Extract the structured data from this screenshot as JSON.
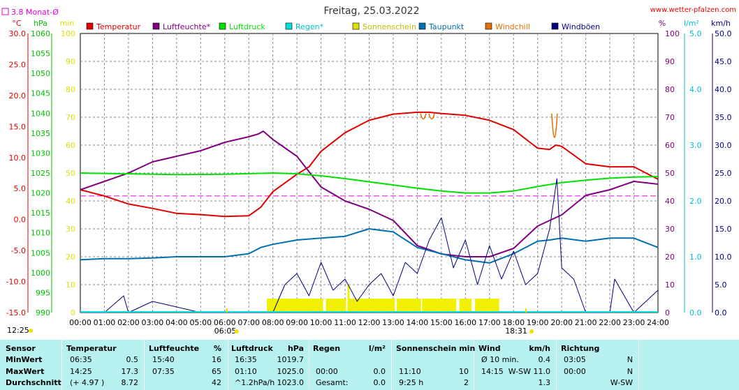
{
  "header": {
    "title": "Freitag, 25.03.2022",
    "website": "www.wetter-pfalzen.com",
    "monthly_avg_label": "3.8 Monat-Ø"
  },
  "chart_data": {
    "type": "line",
    "title": "Freitag, 25.03.2022",
    "x": [
      "00:00",
      "01:00",
      "02:00",
      "03:00",
      "04:00",
      "05:00",
      "06:00",
      "07:00",
      "08:00",
      "09:00",
      "10:00",
      "11:00",
      "12:00",
      "13:00",
      "14:00",
      "15:00",
      "16:00",
      "17:00",
      "18:00",
      "19:00",
      "20:00",
      "21:00",
      "22:00",
      "23:00",
      "24:00"
    ],
    "axes": {
      "temperature": {
        "unit": "°C",
        "range": [
          -15,
          30
        ],
        "ticks": [
          "30.0",
          "25.0",
          "20.0",
          "15.0",
          "10.0",
          "5.0",
          "0.0",
          "-5.0",
          "-10.0",
          "-15.0"
        ]
      },
      "pressure": {
        "unit": "hPa",
        "range": [
          990,
          1060
        ],
        "ticks": [
          "1060",
          "1055",
          "1050",
          "1045",
          "1040",
          "1035",
          "1030",
          "1025",
          "1020",
          "1015",
          "1010",
          "1005",
          "1000",
          "995",
          "990"
        ]
      },
      "sunshine": {
        "unit": "min",
        "range": [
          0,
          100
        ],
        "ticks": [
          "100",
          "90",
          "80",
          "70",
          "60",
          "50",
          "40",
          "30",
          "20",
          "10",
          "0"
        ]
      },
      "humidity": {
        "unit": "%",
        "range": [
          0,
          100
        ],
        "ticks": [
          "100",
          "90",
          "80",
          "70",
          "60",
          "50",
          "40",
          "30",
          "20",
          "10",
          "0"
        ]
      },
      "rain": {
        "unit": "l/m²",
        "range": [
          0,
          5
        ],
        "ticks": [
          "5.0",
          "4.0",
          "3.0",
          "2.0",
          "1.0",
          "0.0"
        ]
      },
      "wind": {
        "unit": "km/h",
        "range": [
          0,
          50
        ],
        "ticks": [
          "50.0",
          "45.0",
          "40.0",
          "35.0",
          "30.0",
          "25.0",
          "20.0",
          "15.0",
          "10.0",
          "5.0",
          "0.0"
        ]
      }
    },
    "legend": [
      "Temperatur",
      "Luftfeuchte*",
      "Luftdruck",
      "Regen*",
      "Sonnenschein",
      "Taupunkt",
      "Windchill",
      "Windböen"
    ],
    "monthly_avg_temp": 3.8,
    "sunrise": "06:05",
    "sunset": "18:31",
    "moonrise": "12:25",
    "series": [
      {
        "name": "Temperatur",
        "axis": "temperature",
        "color": "#e00000",
        "x": [
          0,
          1,
          2,
          3,
          4,
          5,
          6,
          7,
          7.5,
          8,
          9,
          9.5,
          10,
          11,
          12,
          13,
          14,
          14.5,
          15,
          16,
          17,
          18,
          19,
          19.5,
          19.75,
          20,
          21,
          22,
          23,
          24
        ],
        "y": [
          4.8,
          3.8,
          2.5,
          1.8,
          1.0,
          0.8,
          0.5,
          0.6,
          2.0,
          4.5,
          7.3,
          8.5,
          11.0,
          14.0,
          16.0,
          17.0,
          17.3,
          17.3,
          17.1,
          16.8,
          16.0,
          14.5,
          11.5,
          11.3,
          12.0,
          11.8,
          9.0,
          8.5,
          8.5,
          6.5
        ]
      },
      {
        "name": "Luftfeuchte*",
        "axis": "humidity",
        "color": "#800080",
        "x": [
          0,
          1,
          2,
          3,
          4,
          5,
          6,
          7,
          7.4,
          7.6,
          8,
          9,
          10,
          11,
          12,
          13,
          14,
          15,
          16,
          17,
          18,
          19,
          20,
          21,
          22,
          23,
          24
        ],
        "y": [
          44,
          47,
          50,
          54,
          56,
          58,
          61,
          63,
          64,
          65,
          62,
          56,
          45,
          40,
          37,
          33,
          24,
          21,
          20,
          20,
          23,
          31,
          35,
          42,
          44,
          47,
          46
        ]
      },
      {
        "name": "Luftdruck",
        "axis": "pressure",
        "color": "#00e000",
        "x": [
          0,
          2,
          4,
          6,
          8,
          9,
          10,
          11,
          12,
          13,
          14,
          15,
          16,
          17,
          18,
          19,
          20,
          21,
          22,
          23,
          24
        ],
        "y": [
          1025.0,
          1024.8,
          1024.6,
          1024.7,
          1025.0,
          1024.8,
          1024.3,
          1023.6,
          1022.8,
          1022.0,
          1021.2,
          1020.5,
          1020.0,
          1020.0,
          1020.5,
          1021.6,
          1022.6,
          1023.2,
          1023.7,
          1024.0,
          1024.1
        ]
      },
      {
        "name": "Taupunkt",
        "axis": "temperature",
        "color": "#0070b0",
        "x": [
          0,
          1,
          2,
          3,
          4,
          5,
          6,
          7,
          7.5,
          8,
          9,
          10,
          11,
          12,
          13,
          14,
          15,
          16,
          17,
          18,
          19,
          19.5,
          20,
          21,
          22,
          23,
          24
        ],
        "y": [
          -6.5,
          -6.3,
          -6.3,
          -6.2,
          -6.0,
          -6.0,
          -6.0,
          -5.5,
          -4.5,
          -4.0,
          -3.3,
          -3.0,
          -2.7,
          -1.5,
          -2.0,
          -4.5,
          -5.5,
          -6.5,
          -7.0,
          -5.5,
          -3.5,
          -3.3,
          -3.0,
          -3.5,
          -3.0,
          -3.0,
          -4.5
        ]
      },
      {
        "name": "Windböen",
        "axis": "wind",
        "color": "#000080",
        "x": [
          0,
          1,
          1.8,
          2,
          3,
          4,
          5,
          6,
          7,
          8,
          8.5,
          9,
          9.5,
          10,
          10.5,
          11,
          11.5,
          12,
          12.5,
          13,
          13.5,
          14,
          14.5,
          15,
          15.5,
          16,
          16.5,
          17,
          17.5,
          18,
          18.5,
          19,
          19.5,
          19.8,
          20,
          20.5,
          21,
          22,
          22.2,
          23,
          23.5,
          24
        ],
        "y": [
          0,
          0,
          3,
          0,
          2,
          1,
          0,
          0,
          0,
          0,
          5,
          7,
          3,
          9,
          4,
          6,
          2,
          5,
          7,
          3,
          9,
          7,
          13,
          17,
          8,
          13,
          5,
          12,
          6,
          11,
          5,
          7,
          15,
          24,
          8,
          6,
          0,
          0,
          6,
          0,
          2,
          4
        ]
      }
    ],
    "windchill_dips": [
      {
        "x": 14.25,
        "y": 16.0
      },
      {
        "x": 14.6,
        "y": 16.0
      },
      {
        "x": 19.7,
        "y": 10.0
      }
    ],
    "sunshine_hours": [
      [
        7.75,
        10.05
      ],
      [
        10.2,
        11.0
      ],
      [
        11.15,
        13.0
      ],
      [
        13.15,
        14.1
      ],
      [
        14.2,
        15.6
      ],
      [
        15.75,
        16.2
      ],
      [
        16.4,
        17.35
      ]
    ],
    "sunshine_peaks": [
      {
        "x": 9.9,
        "y": 4
      },
      {
        "x": 11.1,
        "y": 10
      }
    ]
  },
  "stats_table": {
    "columns": [
      {
        "header": "Sensor",
        "unit": ""
      },
      {
        "header": "Temperatur",
        "unit": "°C"
      },
      {
        "header": "Luftfeuchte",
        "unit": "%"
      },
      {
        "header": "Luftdruck",
        "unit": "hPa"
      },
      {
        "header": "Regen",
        "unit": "l/m²"
      },
      {
        "header": "Sonnenschein min",
        "unit": ""
      },
      {
        "header": "Wind",
        "unit": "km/h"
      },
      {
        "header": "Richtung",
        "unit": ""
      }
    ],
    "rows": [
      {
        "label": "MinWert",
        "temp": [
          "06:35",
          "0.5"
        ],
        "hum": [
          "15:40",
          "16"
        ],
        "press": [
          "16:35",
          "1019.7"
        ],
        "rain": [
          "",
          "",
          ""
        ],
        "sun": [
          "",
          "",
          ""
        ],
        "wind": [
          "Ø 10 min.",
          "0.4"
        ],
        "dir": [
          "03:05",
          "N"
        ]
      },
      {
        "label": "MaxWert",
        "temp": [
          "14:25",
          "17.3"
        ],
        "hum": [
          "07:35",
          "65"
        ],
        "press": [
          "01:10",
          "1025.0"
        ],
        "rain": [
          "00:00",
          "0.0"
        ],
        "sun": [
          "11:10",
          "10"
        ],
        "wind": [
          "14:15",
          "W-SW 11.0"
        ],
        "dir": [
          "00:00",
          "N"
        ]
      },
      {
        "label": "Durchschnitt",
        "temp": [
          "(+ 4.97 )",
          "8.72"
        ],
        "hum": [
          "",
          "42"
        ],
        "press": [
          "^1.2hPa/h",
          "1023.0"
        ],
        "rain": [
          "Gesamt:",
          "0.0"
        ],
        "sun": [
          "9:25 h",
          "2"
        ],
        "wind": [
          "",
          "1.3"
        ],
        "dir": [
          "",
          "W-SW"
        ]
      }
    ]
  }
}
